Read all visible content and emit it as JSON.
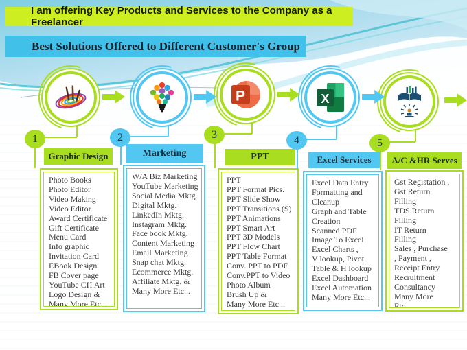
{
  "banners": {
    "top": "I am offering Key Products and Services to the Company as a Freelancer",
    "subtitle": "Best Solutions Offered to Different Customer's Group"
  },
  "palette": {
    "green": "#a9dd1f",
    "blue": "#52c7f1",
    "banner_top_bg": "#cdee21",
    "banner_sub_bg": "#41c0ea"
  },
  "columns": [
    {
      "number": "1",
      "title": "Graphic Design",
      "accent": "green",
      "icon": "paint-swirl-icon",
      "items": [
        "Photo  Books",
        "Photo  Editor",
        "Video  Making",
        "Video Editor",
        "Award Certificate",
        "Gift Certificate",
        "Menu  Card",
        "Info graphic",
        "Invitation  Card",
        "EBook Design",
        "FB Cover page",
        "YouTube CH Art",
        "Logo  Design &",
        "Many More  Etc..."
      ]
    },
    {
      "number": "2",
      "title": "Marketing",
      "accent": "blue",
      "icon": "social-bulb-icon",
      "items": [
        "W/A  Biz  Marketing",
        "YouTube  Marketing",
        "Social Media Mktg.",
        "Digital Mktg.",
        "LinkedIn Mktg.",
        "Instagram Mktg.",
        "Face book Mktg.",
        "Content Marketing",
        "Email Marketing",
        "Snap chat Mktg.",
        "Ecommerce  Mktg.",
        "Affiliate Mktg.   &",
        "Many  More  Etc..."
      ]
    },
    {
      "number": "3",
      "title": "PPT",
      "accent": "green",
      "icon": "powerpoint-icon",
      "items": [
        "PPT",
        "PPT  Format Pics.",
        "PPT  Slide  Show",
        "PPT Transitions (S)",
        "PPT Animations",
        "PPT Smart Art",
        "PPT  3D Models",
        "PPT Flow Chart",
        "PPT Table Format",
        "Conv. PPT to PDF",
        "Conv.PPT to  Video",
        "Photo Album",
        "Brush Up  &",
        "Many  More Etc..."
      ]
    },
    {
      "number": "4",
      "title": "Excel Services",
      "accent": "blue",
      "icon": "excel-icon",
      "items": [
        "Excel  Data Entry",
        "Formatting  and",
        "Cleanup",
        "Graph  and  Table",
        "Creation",
        "Scanned PDF",
        "Image To Excel",
        "Excel  Charts ,",
        "V lookup, Pivot",
        "Table & H lookup",
        "Excel  Dashboard",
        "Excel Automation",
        "Many  More Etc..."
      ]
    },
    {
      "number": "5",
      "title": "A/C &HR Serves",
      "accent": "green",
      "icon": "accounting-hr-icon",
      "items": [
        "Gst Registation ,",
        "Gst Return",
        "Filling",
        "TDS Return",
        "Filling",
        "IT Return",
        "Filling",
        "Sales , Purchase",
        ",  Payment  ,",
        "Receipt  Entry",
        "Recruitment",
        "Consultancy",
        "Many More",
        "Etc..."
      ]
    }
  ]
}
